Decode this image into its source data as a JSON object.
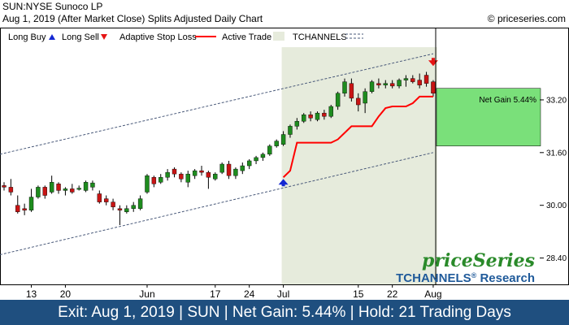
{
  "header": {
    "line1": "SUN:NYSE Sunoco LP",
    "line2": "Aug 1, 2019 (After Market Close)  Splits Adjusted Daily Chart",
    "copyright": "© priceseries.com"
  },
  "legend": {
    "long_buy": "Long Buy",
    "long_sell": "Long Sell",
    "adaptive_stop": "Adaptive Stop Loss",
    "active_trade": "Active Trade",
    "tchannels": "TCHANNELS"
  },
  "colors": {
    "up": "#1e8c1e",
    "down": "#c81414",
    "stop": "#ff0000",
    "channel": "#4a5a7a",
    "trade_zone": "#e6ebdc",
    "gain_box": "#7ae07a",
    "buy_arrow": "#1428d2",
    "sell_arrow": "#e61414",
    "footer_bg": "#1f4f7f"
  },
  "brand": {
    "name": "priceSeries",
    "research": "TCHANNELS",
    "research_suffix": " Research",
    "reg": "®"
  },
  "footer": {
    "text": "Exit: Aug 1, 2019 | SUN | Net Gain: 5.44% | Hold: 21 Trading Days"
  },
  "chart_data": {
    "type": "candlestick",
    "y_ticks": [
      "33.20",
      "31.60",
      "30.00",
      "28.40"
    ],
    "x_ticks": [
      "13",
      "20",
      "Jun",
      "17",
      "24",
      "Jul",
      "15",
      "22",
      "Aug"
    ],
    "ylim": [
      27.6,
      34.9
    ],
    "net_gain_label": "Net Gain 5.44%",
    "entry": {
      "index": 41,
      "price": 30.85
    },
    "exit": {
      "index": 63,
      "price": 34.35
    },
    "trade_zone": {
      "start_index": 41,
      "end_index": 63,
      "top": 34.8
    },
    "gain_box": {
      "top": 33.55,
      "bottom": 31.8
    },
    "channel": {
      "upper": [
        [
          0,
          31.55
        ],
        [
          63,
          34.6
        ]
      ],
      "lower": [
        [
          0,
          28.5
        ],
        [
          63,
          31.6
        ]
      ]
    },
    "candles": [
      {
        "o": 30.6,
        "h": 30.7,
        "l": 30.45,
        "c": 30.55
      },
      {
        "o": 30.55,
        "h": 30.8,
        "l": 30.3,
        "c": 30.4
      },
      {
        "o": 30.0,
        "h": 30.3,
        "l": 29.75,
        "c": 29.8
      },
      {
        "o": 29.9,
        "h": 30.05,
        "l": 29.7,
        "c": 29.85
      },
      {
        "o": 29.85,
        "h": 30.5,
        "l": 29.8,
        "c": 30.25
      },
      {
        "o": 30.25,
        "h": 30.6,
        "l": 30.2,
        "c": 30.55
      },
      {
        "o": 30.55,
        "h": 30.6,
        "l": 30.2,
        "c": 30.3
      },
      {
        "o": 30.4,
        "h": 30.9,
        "l": 30.35,
        "c": 30.7
      },
      {
        "o": 30.65,
        "h": 30.7,
        "l": 30.35,
        "c": 30.45
      },
      {
        "o": 30.45,
        "h": 30.55,
        "l": 30.3,
        "c": 30.5
      },
      {
        "o": 30.5,
        "h": 30.65,
        "l": 30.35,
        "c": 30.4
      },
      {
        "o": 30.5,
        "h": 30.6,
        "l": 30.45,
        "c": 30.52
      },
      {
        "o": 30.45,
        "h": 30.75,
        "l": 30.4,
        "c": 30.7
      },
      {
        "o": 30.55,
        "h": 30.75,
        "l": 30.45,
        "c": 30.68
      },
      {
        "o": 30.35,
        "h": 30.45,
        "l": 30.05,
        "c": 30.1
      },
      {
        "o": 30.2,
        "h": 30.3,
        "l": 30.0,
        "c": 30.1
      },
      {
        "o": 30.1,
        "h": 30.2,
        "l": 29.85,
        "c": 29.95
      },
      {
        "o": 29.9,
        "h": 30.0,
        "l": 29.4,
        "c": 29.85
      },
      {
        "o": 29.8,
        "h": 30.0,
        "l": 29.75,
        "c": 29.9
      },
      {
        "o": 29.9,
        "h": 30.1,
        "l": 29.8,
        "c": 30.0
      },
      {
        "o": 29.9,
        "h": 30.3,
        "l": 29.85,
        "c": 30.2
      },
      {
        "o": 30.4,
        "h": 30.95,
        "l": 30.35,
        "c": 30.9
      },
      {
        "o": 30.85,
        "h": 30.9,
        "l": 30.55,
        "c": 30.65
      },
      {
        "o": 30.7,
        "h": 30.95,
        "l": 30.65,
        "c": 30.85
      },
      {
        "o": 30.85,
        "h": 31.1,
        "l": 30.75,
        "c": 31.0
      },
      {
        "o": 31.1,
        "h": 31.15,
        "l": 30.85,
        "c": 30.95
      },
      {
        "o": 30.95,
        "h": 31.0,
        "l": 30.7,
        "c": 30.8
      },
      {
        "o": 30.7,
        "h": 31.05,
        "l": 30.55,
        "c": 30.95
      },
      {
        "o": 30.9,
        "h": 31.1,
        "l": 30.8,
        "c": 31.05
      },
      {
        "o": 31.05,
        "h": 31.2,
        "l": 30.9,
        "c": 31.0
      },
      {
        "o": 31.0,
        "h": 31.05,
        "l": 30.5,
        "c": 30.85
      },
      {
        "o": 30.8,
        "h": 31.0,
        "l": 30.75,
        "c": 30.95
      },
      {
        "o": 31.0,
        "h": 31.3,
        "l": 30.95,
        "c": 31.25
      },
      {
        "o": 31.25,
        "h": 31.35,
        "l": 30.8,
        "c": 30.9
      },
      {
        "o": 30.9,
        "h": 31.15,
        "l": 30.8,
        "c": 31.1
      },
      {
        "o": 31.05,
        "h": 31.3,
        "l": 30.95,
        "c": 31.2
      },
      {
        "o": 31.2,
        "h": 31.4,
        "l": 31.1,
        "c": 31.35
      },
      {
        "o": 31.35,
        "h": 31.5,
        "l": 31.25,
        "c": 31.45
      },
      {
        "o": 31.45,
        "h": 31.6,
        "l": 31.35,
        "c": 31.55
      },
      {
        "o": 31.55,
        "h": 31.85,
        "l": 31.5,
        "c": 31.8
      },
      {
        "o": 31.8,
        "h": 32.0,
        "l": 31.75,
        "c": 31.95
      },
      {
        "o": 31.85,
        "h": 32.25,
        "l": 31.8,
        "c": 32.15
      },
      {
        "o": 32.15,
        "h": 32.45,
        "l": 32.05,
        "c": 32.4
      },
      {
        "o": 32.4,
        "h": 32.65,
        "l": 32.3,
        "c": 32.55
      },
      {
        "o": 32.55,
        "h": 32.8,
        "l": 32.5,
        "c": 32.75
      },
      {
        "o": 32.75,
        "h": 32.85,
        "l": 32.55,
        "c": 32.65
      },
      {
        "o": 32.6,
        "h": 32.85,
        "l": 32.55,
        "c": 32.8
      },
      {
        "o": 32.8,
        "h": 32.9,
        "l": 32.6,
        "c": 32.7
      },
      {
        "o": 32.7,
        "h": 33.05,
        "l": 32.65,
        "c": 33.0
      },
      {
        "o": 33.0,
        "h": 33.45,
        "l": 32.9,
        "c": 33.4
      },
      {
        "o": 33.4,
        "h": 33.85,
        "l": 33.3,
        "c": 33.75
      },
      {
        "o": 33.7,
        "h": 33.85,
        "l": 33.15,
        "c": 33.25
      },
      {
        "o": 33.25,
        "h": 33.4,
        "l": 32.85,
        "c": 33.05
      },
      {
        "o": 33.1,
        "h": 33.55,
        "l": 32.8,
        "c": 33.45
      },
      {
        "o": 33.45,
        "h": 33.8,
        "l": 33.4,
        "c": 33.75
      },
      {
        "o": 33.7,
        "h": 33.85,
        "l": 33.55,
        "c": 33.65
      },
      {
        "o": 33.65,
        "h": 33.8,
        "l": 33.55,
        "c": 33.7
      },
      {
        "o": 33.7,
        "h": 33.8,
        "l": 33.55,
        "c": 33.62
      },
      {
        "o": 33.62,
        "h": 33.85,
        "l": 33.55,
        "c": 33.8
      },
      {
        "o": 33.8,
        "h": 33.95,
        "l": 33.6,
        "c": 33.85
      },
      {
        "o": 33.85,
        "h": 33.95,
        "l": 33.7,
        "c": 33.75
      },
      {
        "o": 33.8,
        "h": 34.0,
        "l": 33.55,
        "c": 33.65
      },
      {
        "o": 33.95,
        "h": 34.05,
        "l": 33.6,
        "c": 33.7
      },
      {
        "o": 33.75,
        "h": 33.8,
        "l": 33.3,
        "c": 33.4
      }
    ],
    "stop_line": [
      [
        41,
        30.85
      ],
      [
        42,
        31.05
      ],
      [
        43,
        31.9
      ],
      [
        44,
        31.9
      ],
      [
        45,
        31.9
      ],
      [
        46,
        31.9
      ],
      [
        47,
        31.9
      ],
      [
        48,
        31.9
      ],
      [
        49,
        32.0
      ],
      [
        50,
        32.2
      ],
      [
        51,
        32.4
      ],
      [
        52,
        32.4
      ],
      [
        53,
        32.4
      ],
      [
        54,
        32.4
      ],
      [
        55,
        32.7
      ],
      [
        56,
        32.95
      ],
      [
        57,
        33.0
      ],
      [
        58,
        33.0
      ],
      [
        59,
        33.0
      ],
      [
        60,
        33.1
      ],
      [
        61,
        33.3
      ],
      [
        62,
        33.3
      ],
      [
        63,
        33.3
      ]
    ],
    "x_tick_indices": [
      4,
      9,
      21,
      31,
      36,
      41,
      52,
      57,
      63
    ]
  }
}
